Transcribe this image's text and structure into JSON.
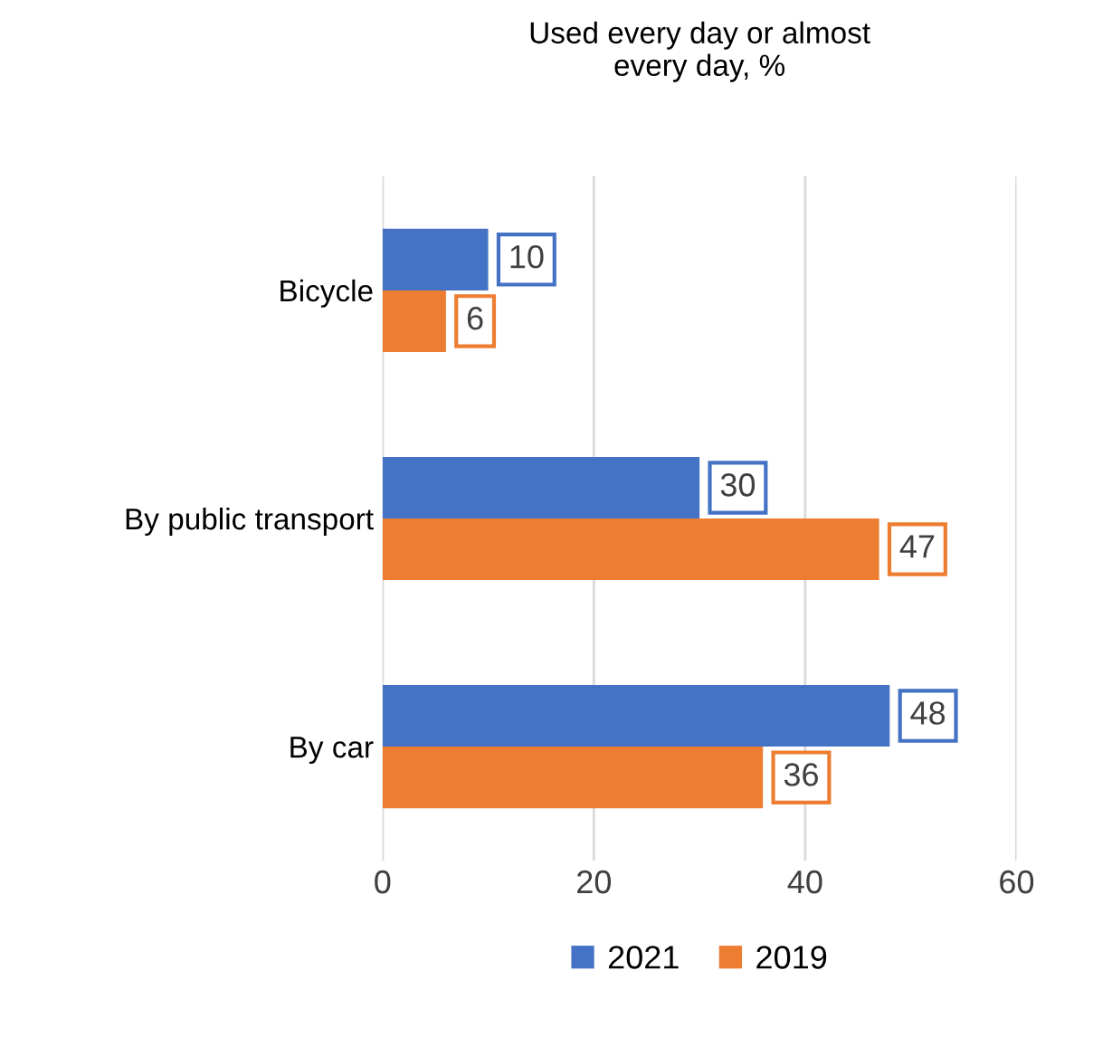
{
  "chart_data": {
    "type": "bar",
    "orientation": "horizontal",
    "title": "Used every day or almost\nevery day, %",
    "categories": [
      "Bicycle",
      "By public transport",
      "By car"
    ],
    "series": [
      {
        "name": "2021",
        "color": "#4472c4",
        "values": [
          10,
          30,
          48
        ]
      },
      {
        "name": "2019",
        "color": "#ed7d31",
        "values": [
          6,
          47,
          36
        ]
      }
    ],
    "xlim": [
      0,
      60
    ],
    "xticks": [
      0,
      20,
      40,
      60
    ],
    "grid": "x",
    "legend": "bottom",
    "data_labels": true
  }
}
